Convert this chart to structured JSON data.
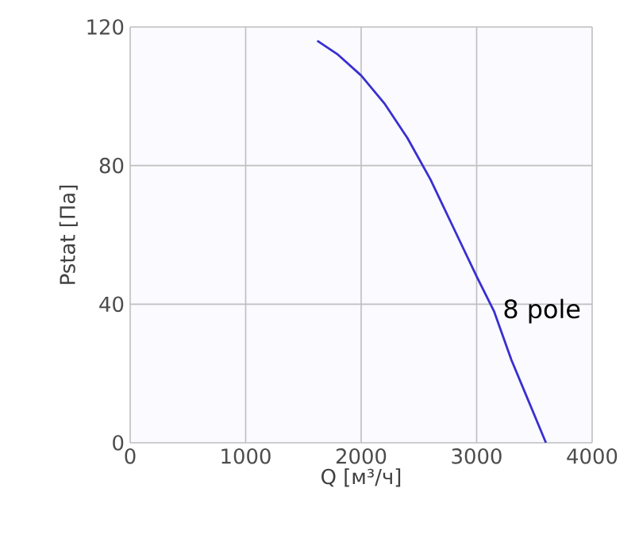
{
  "chart_data": {
    "type": "line",
    "xlabel": "Q [м³/ч]",
    "ylabel": "Pstat [Па]",
    "xlim": [
      0,
      4000
    ],
    "ylim": [
      0,
      120
    ],
    "xticks": [
      0,
      1000,
      2000,
      3000,
      4000
    ],
    "yticks": [
      0,
      40,
      80,
      120
    ],
    "grid": true,
    "series": [
      {
        "name": "8 pole",
        "color": "#3a2fd0",
        "x": [
          1620,
          1800,
          2000,
          2200,
          2400,
          2600,
          2800,
          3000,
          3150,
          3300,
          3450,
          3600
        ],
        "values": [
          116,
          112,
          106,
          98,
          88,
          76,
          62,
          48,
          38,
          24,
          12,
          0
        ]
      }
    ]
  }
}
